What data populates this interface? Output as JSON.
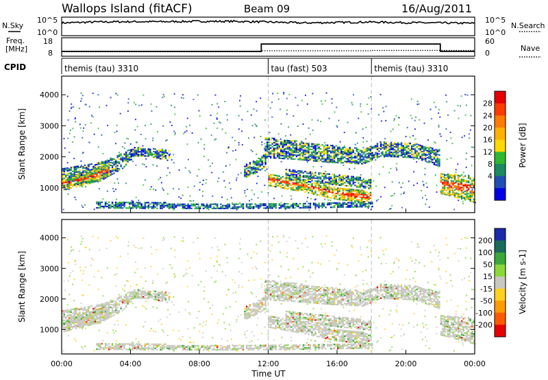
{
  "header": {
    "station": "Wallops Island (fitACF)",
    "beam": "Beam 09",
    "date": "16/Aug/2011"
  },
  "noise_panel": {
    "left_label": "N.Sky",
    "right_label": "N.Search",
    "left_ticks": [
      "10^5",
      "10^0"
    ],
    "right_ticks": [
      "10^5",
      "10^0"
    ]
  },
  "freq_panel": {
    "left_label_1": "Freq.",
    "left_label_2": "[MHz]",
    "right_label": "Nave",
    "left_ticks": [
      "18",
      "8"
    ],
    "right_ticks": [
      "60",
      "0"
    ]
  },
  "cpid_panel": {
    "label": "CPID",
    "segments": [
      {
        "start_h": 0,
        "end_h": 12,
        "label": "themis (tau) 3310"
      },
      {
        "start_h": 12,
        "end_h": 18,
        "label": "tau (fast) 503"
      },
      {
        "start_h": 18,
        "end_h": 24,
        "label": "themis (tau) 3310"
      }
    ]
  },
  "power_colorbar": {
    "title": "Power [dB]",
    "ticks": [
      "28",
      "24",
      "20",
      "16",
      "12",
      "8",
      "4"
    ],
    "colors": [
      "#e60000",
      "#ff3a00",
      "#ff7a00",
      "#ffb000",
      "#ffd800",
      "#2db82d",
      "#1a8a60",
      "#1f4fb4",
      "#0000e6"
    ]
  },
  "velocity_colorbar": {
    "title": "Velocity [m s-1]",
    "ticks": [
      "200",
      "100",
      "50",
      "15",
      "-15",
      "-50",
      "-100",
      "-200"
    ],
    "colors": [
      "#1a2aa8",
      "#1a6a5a",
      "#3aa83a",
      "#8ad83a",
      "#c8c8c0",
      "#ffd020",
      "#ff9a00",
      "#ff5a00",
      "#e60000"
    ]
  },
  "chart_data": [
    {
      "type": "heatmap",
      "name": "power",
      "ylabel": "Slant Range [km]",
      "yticks": [
        1000,
        2000,
        3000,
        4000
      ],
      "ylim": [
        200,
        4600
      ],
      "xlim": [
        0,
        24
      ],
      "bands": [
        {
          "x": [
            0,
            2.2,
            3.5,
            4.2,
            5.0,
            6.2
          ],
          "y_low": [
            1050,
            1250,
            1650,
            2050,
            2050,
            1900
          ],
          "y_high": [
            1650,
            1850,
            2150,
            2350,
            2300,
            2250
          ],
          "level": "mid"
        },
        {
          "x": [
            0,
            1.5,
            2.8
          ],
          "y_low": [
            950,
            1150,
            1450
          ],
          "y_high": [
            1350,
            1550,
            1800
          ],
          "level": "high"
        },
        {
          "x": [
            10.6,
            11.2,
            11.8
          ],
          "y_low": [
            1350,
            1500,
            1700
          ],
          "y_high": [
            1750,
            1950,
            2100
          ],
          "level": "mid"
        },
        {
          "x": [
            11.8,
            13.5,
            15.5,
            17.5,
            18.5,
            20.5,
            22.0
          ],
          "y_low": [
            2000,
            1950,
            1850,
            1800,
            2050,
            2000,
            1700
          ],
          "y_high": [
            2650,
            2550,
            2400,
            2300,
            2500,
            2450,
            2250
          ],
          "level": "mid"
        },
        {
          "x": [
            12.0,
            14.0,
            16.0,
            18.0
          ],
          "y_low": [
            1100,
            900,
            650,
            550
          ],
          "y_high": [
            1500,
            1300,
            1050,
            900
          ],
          "level": "high"
        },
        {
          "x": [
            13.0,
            15.5,
            18.0
          ],
          "y_low": [
            1300,
            1150,
            1000
          ],
          "y_high": [
            1650,
            1500,
            1350
          ],
          "level": "mid"
        },
        {
          "x": [
            22.0,
            23.0,
            24.0
          ],
          "y_low": [
            850,
            700,
            550
          ],
          "y_high": [
            1500,
            1450,
            1400
          ],
          "level": "high"
        },
        {
          "x": [
            2.0,
            6.0,
            10.0,
            14.0,
            18.0
          ],
          "y_low": [
            380,
            360,
            360,
            380,
            420
          ],
          "y_high": [
            560,
            540,
            520,
            540,
            600
          ],
          "level": "low"
        }
      ]
    },
    {
      "type": "heatmap",
      "name": "velocity",
      "ylabel": "Slant Range [km]",
      "yticks": [
        1000,
        2000,
        3000,
        4000
      ],
      "ylim": [
        200,
        4600
      ],
      "xlim": [
        0,
        24
      ],
      "xticks": [
        "00:00",
        "04:00",
        "08:00",
        "12:00",
        "16:00",
        "20:00",
        "00:00"
      ],
      "xlabel": "Time UT"
    },
    {
      "type": "line",
      "name": "noise",
      "x": [
        0,
        2,
        4,
        6,
        8,
        10,
        12,
        14,
        16,
        18,
        20,
        22,
        24
      ],
      "values": [
        0.72,
        0.78,
        0.8,
        0.8,
        0.82,
        0.82,
        0.78,
        0.72,
        0.75,
        0.78,
        0.74,
        0.72,
        0.7
      ]
    },
    {
      "type": "line",
      "name": "frequency",
      "x": [
        0,
        11.6,
        11.6,
        22.0,
        22.0,
        24
      ],
      "values": [
        10.3,
        10.3,
        15.2,
        15.2,
        10.3,
        10.3
      ]
    }
  ]
}
